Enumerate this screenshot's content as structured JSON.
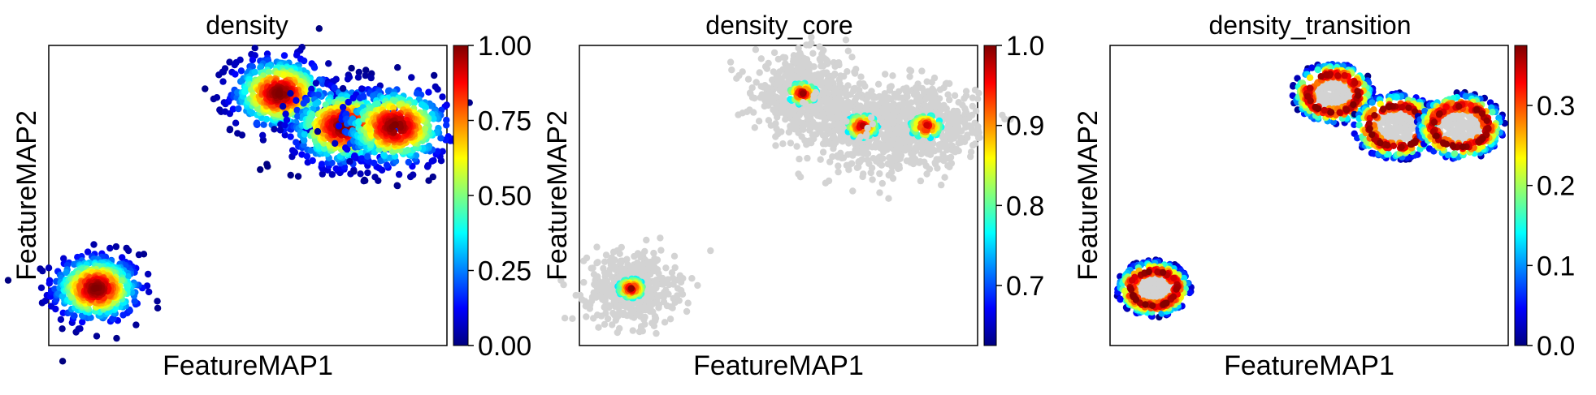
{
  "figure": "Scatter embeddings colored by density",
  "colormap": [
    "#00007f",
    "#0000ff",
    "#007fff",
    "#00ffff",
    "#7fff7f",
    "#ffff00",
    "#ff7f00",
    "#ff0000",
    "#7f0000"
  ],
  "background_point_color": "#d3d3d3",
  "chart_data": [
    {
      "type": "scatter",
      "title": "density",
      "xlabel": "FeatureMAP1",
      "ylabel": "FeatureMAP2",
      "mode": "full",
      "clusters": [
        {
          "cx": 0.12,
          "cy": 0.19,
          "spread": 0.055
        },
        {
          "cx": 0.58,
          "cy": 0.84,
          "spread": 0.06
        },
        {
          "cx": 0.74,
          "cy": 0.73,
          "spread": 0.065
        },
        {
          "cx": 0.87,
          "cy": 0.73,
          "spread": 0.065
        }
      ],
      "colorbar": {
        "min": 0.0,
        "max": 1.0,
        "ticks": [
          "0.00",
          "0.25",
          "0.50",
          "0.75",
          "1.00"
        ],
        "tick_values": [
          0.0,
          0.25,
          0.5,
          0.75,
          1.0
        ]
      }
    },
    {
      "type": "scatter",
      "title": "density_core",
      "xlabel": "FeatureMAP1",
      "ylabel": "FeatureMAP2",
      "mode": "core",
      "clusters": [
        {
          "cx": 0.13,
          "cy": 0.19,
          "spread": 0.055
        },
        {
          "cx": 0.56,
          "cy": 0.84,
          "spread": 0.06
        },
        {
          "cx": 0.71,
          "cy": 0.73,
          "spread": 0.065
        },
        {
          "cx": 0.87,
          "cy": 0.73,
          "spread": 0.065
        }
      ],
      "colorbar": {
        "min": 0.625,
        "max": 1.0,
        "ticks": [
          "0.7",
          "0.8",
          "0.9",
          "1.0"
        ],
        "tick_values": [
          0.7,
          0.8,
          0.9,
          1.0
        ]
      }
    },
    {
      "type": "scatter",
      "title": "density_transition",
      "xlabel": "FeatureMAP1",
      "ylabel": "FeatureMAP2",
      "mode": "transition",
      "clusters": [
        {
          "cx": 0.11,
          "cy": 0.19,
          "spread": 0.055
        },
        {
          "cx": 0.56,
          "cy": 0.84,
          "spread": 0.06
        },
        {
          "cx": 0.72,
          "cy": 0.73,
          "spread": 0.065
        },
        {
          "cx": 0.88,
          "cy": 0.73,
          "spread": 0.065
        }
      ],
      "colorbar": {
        "min": 0.0,
        "max": 0.375,
        "ticks": [
          "0.0",
          "0.1",
          "0.2",
          "0.3"
        ],
        "tick_values": [
          0.0,
          0.1,
          0.2,
          0.3
        ]
      }
    }
  ]
}
